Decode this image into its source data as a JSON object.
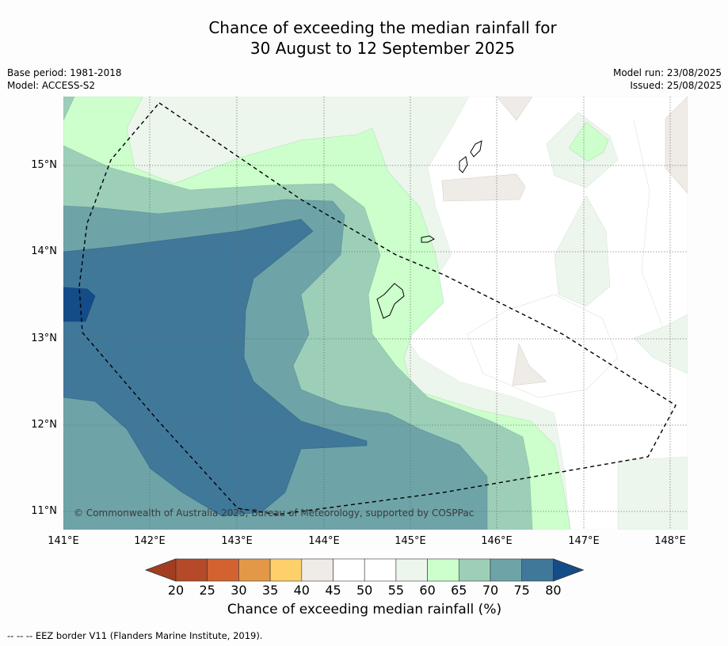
{
  "title": {
    "line1": "Chance of exceeding the median rainfall for",
    "line2": "30 August to 12 September 2025"
  },
  "meta": {
    "base_period": "Base period: 1981-2018",
    "model": "Model: ACCESS-S2",
    "model_run": "Model run: 23/08/2025",
    "issued": "Issued: 25/08/2025"
  },
  "map": {
    "lon_ticks": [
      "141°E",
      "142°E",
      "143°E",
      "144°E",
      "145°E",
      "146°E",
      "147°E",
      "148°E"
    ],
    "lat_ticks": [
      "15°N",
      "14°N",
      "13°N",
      "12°N",
      "11°N"
    ],
    "copyright": "© Commonwealth of Australia 2025, Bureau of Meteorology, supported by COSPPac"
  },
  "colorbar": {
    "ticks": [
      "20",
      "25",
      "30",
      "35",
      "40",
      "45",
      "50",
      "55",
      "60",
      "65",
      "70",
      "75",
      "80"
    ],
    "colors": [
      "#a23d22",
      "#b54a28",
      "#d26230",
      "#e39848",
      "#fdd06a",
      "#efebe6",
      "#ffffff",
      "#ffffff",
      "#ecf6ec",
      "#ccffcc",
      "#9dcfb8",
      "#6ea4a8",
      "#40789a",
      "#144c88"
    ],
    "label": "Chance of exceeding median rainfall (%)"
  },
  "footnote": "--  --  -- EEZ border V11 (Flanders Marine Institute, 2019)."
}
